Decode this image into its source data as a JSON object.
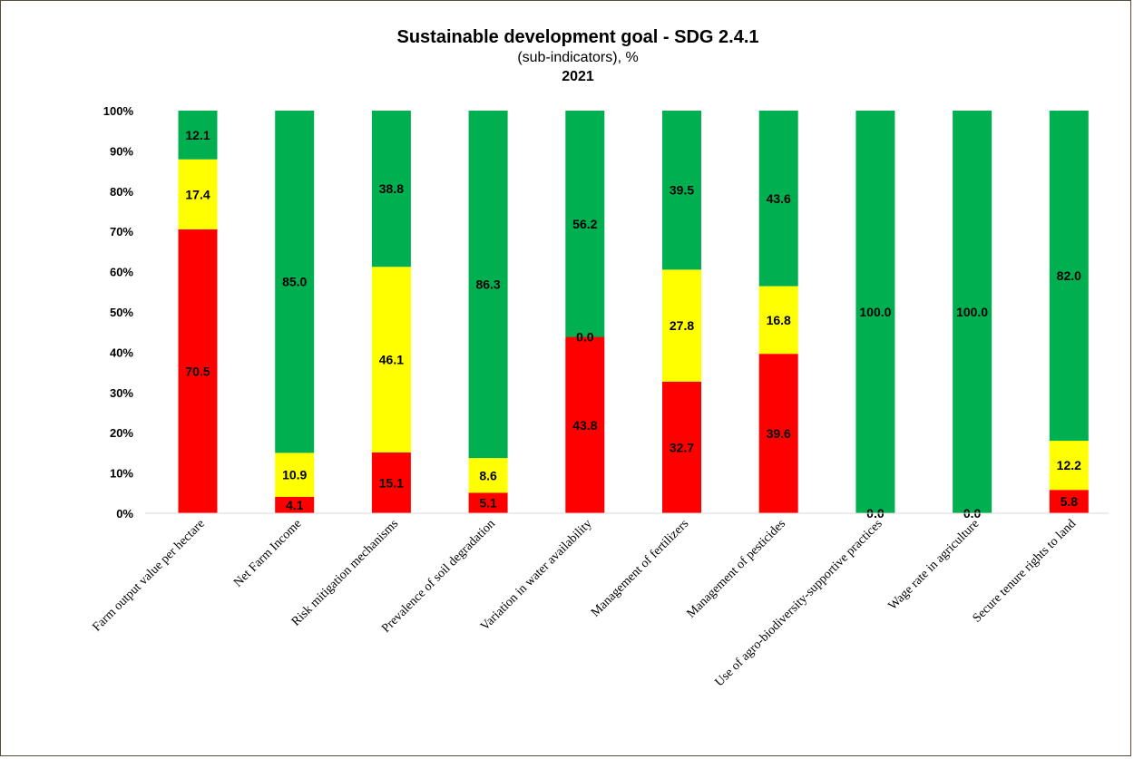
{
  "chart_data": {
    "type": "bar",
    "stacked": true,
    "title": "Sustainable development goal - SDG 2.4.1",
    "subtitle": "(sub-indicators), %",
    "year": "2021",
    "ylim": [
      0,
      100
    ],
    "y_ticks": [
      "0%",
      "10%",
      "20%",
      "30%",
      "40%",
      "50%",
      "60%",
      "70%",
      "80%",
      "90%",
      "100%"
    ],
    "grid": false,
    "legend": "none",
    "categories": [
      "Farm output value per hectare",
      "Net Farm Income",
      "Risk mitigation mechanisms",
      "Prevalence of soil degradation",
      "Variation in water availability",
      "Management of fertilizers",
      "Management of pesticides",
      "Use of agro-biodiversity-supportive practices",
      "Wage rate in agriculture",
      "Secure tenure rights to land"
    ],
    "series": [
      {
        "color": "#ff0000",
        "values": [
          70.5,
          4.1,
          15.1,
          5.1,
          43.8,
          32.7,
          39.6,
          0.0,
          0.0,
          5.8
        ],
        "labels": [
          "70.5",
          "4.1",
          "15.1",
          "5.1",
          "43.8",
          "32.7",
          "39.6",
          "0.0",
          "0.0",
          "5.8"
        ]
      },
      {
        "color": "#ffff00",
        "values": [
          17.4,
          10.9,
          46.1,
          8.6,
          0.0,
          27.8,
          16.8,
          0.0,
          0.0,
          12.2
        ],
        "labels": [
          "17.4",
          "10.9",
          "46.1",
          "8.6",
          "0.0",
          "27.8",
          "16.8",
          "",
          "",
          "12.2"
        ]
      },
      {
        "color": "#00b050",
        "values": [
          12.1,
          85.0,
          38.8,
          86.3,
          56.2,
          39.5,
          43.6,
          100.0,
          100.0,
          82.0
        ],
        "labels": [
          "12.1",
          "85.0",
          "38.8",
          "86.3",
          "56.2",
          "39.5",
          "43.6",
          "100.0",
          "100.0",
          "82.0"
        ]
      }
    ]
  }
}
